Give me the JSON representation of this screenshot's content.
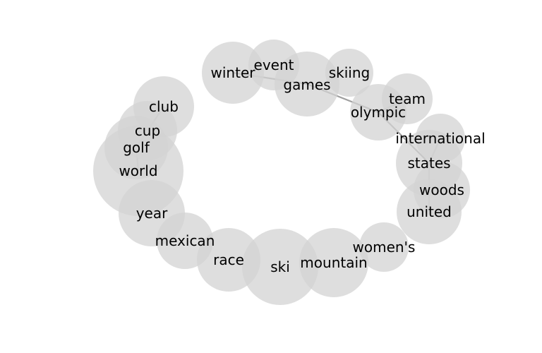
{
  "nodes": [
    {
      "id": "winter",
      "label": "winter"
    },
    {
      "id": "event",
      "label": "event"
    },
    {
      "id": "games",
      "label": "games"
    },
    {
      "id": "skiing",
      "label": "skiing"
    },
    {
      "id": "team",
      "label": "team"
    },
    {
      "id": "olympic",
      "label": "olympic"
    },
    {
      "id": "international",
      "label": "international"
    },
    {
      "id": "states",
      "label": "states"
    },
    {
      "id": "woods",
      "label": "woods"
    },
    {
      "id": "united",
      "label": "united"
    },
    {
      "id": "womens",
      "label": "women's"
    },
    {
      "id": "mountain",
      "label": "mountain"
    },
    {
      "id": "ski",
      "label": "ski"
    },
    {
      "id": "race",
      "label": "race"
    },
    {
      "id": "mexican",
      "label": "mexican"
    },
    {
      "id": "year",
      "label": "year"
    },
    {
      "id": "world",
      "label": "world"
    },
    {
      "id": "golf",
      "label": "golf"
    },
    {
      "id": "cup",
      "label": "cup"
    },
    {
      "id": "club",
      "label": "club"
    }
  ],
  "edges": [
    {
      "source": "winter",
      "target": "games"
    },
    {
      "source": "games",
      "target": "olympic"
    },
    {
      "source": "olympic",
      "target": "team"
    },
    {
      "source": "olympic",
      "target": "states"
    },
    {
      "source": "international",
      "target": "states"
    },
    {
      "source": "states",
      "target": "united"
    },
    {
      "source": "world",
      "target": "golf"
    },
    {
      "source": "golf",
      "target": "cup"
    },
    {
      "source": "cup",
      "target": "club"
    }
  ],
  "colors": {
    "node_fill": "#d3d3d3",
    "edge": "#a0a0a0",
    "label": "#000000"
  }
}
